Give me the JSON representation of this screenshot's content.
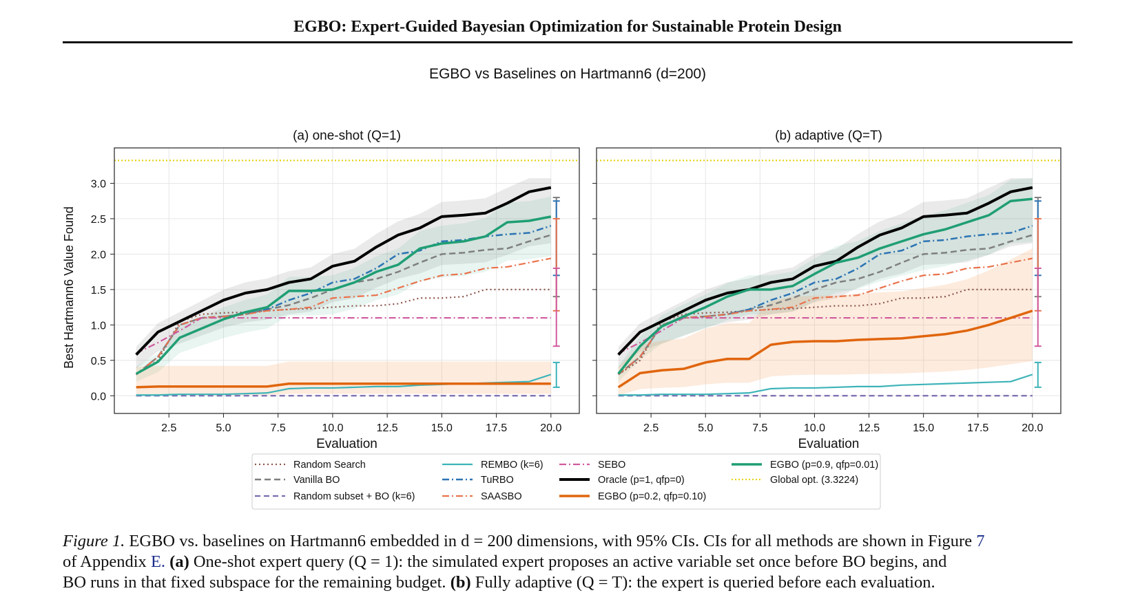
{
  "header": {
    "running_title": "EGBO: Expert-Guided Bayesian Optimization for Sustainable Protein Design"
  },
  "figure": {
    "suptitle": "EGBO vs Baselines on Hartmann6 (d=200)",
    "global_opt_label": "Global opt. (3.3224)",
    "legend": [
      {
        "key": "random",
        "label": "Random Search",
        "color": "#8c564b",
        "dash": "2,4",
        "width": 2.2
      },
      {
        "key": "vanilla",
        "label": "Vanilla BO",
        "color": "#7f7f7f",
        "dash": "9,5",
        "width": 2.5
      },
      {
        "key": "subset",
        "label": "Random subset + BO (k=6)",
        "color": "#7b6bb0",
        "dash": "8,5",
        "width": 2.2
      },
      {
        "key": "rembo",
        "label": "REMBO (k=6)",
        "color": "#3cb3b8",
        "dash": "",
        "width": 2.2
      },
      {
        "key": "turbo",
        "label": "TuRBO",
        "color": "#2c74b3",
        "dash": "10,4,2,4",
        "width": 2.5
      },
      {
        "key": "saasbo",
        "label": "SAASBO",
        "color": "#e9724c",
        "dash": "10,4,2,4",
        "width": 2.2
      },
      {
        "key": "sebo",
        "label": "SEBO",
        "color": "#d05a9e",
        "dash": "10,4,2,4",
        "width": 2.2
      },
      {
        "key": "oracle",
        "label": "Oracle (p=1, qfp=0)",
        "color": "#000000",
        "dash": "",
        "width": 4
      },
      {
        "key": "egbo_low",
        "label": "EGBO (p=0.2, qfp=0.10)",
        "color": "#e0650d",
        "dash": "",
        "width": 3.5
      },
      {
        "key": "egbo_high",
        "label": "EGBO (p=0.9, qfp=0.01)",
        "color": "#1f9e74",
        "dash": "",
        "width": 3.5
      },
      {
        "key": "global",
        "label": "Global opt. (3.3224)",
        "color": "#e6d31a",
        "dash": "2,3",
        "width": 2.2
      }
    ]
  },
  "chart_data": [
    {
      "type": "line",
      "title": "(a) one-shot (Q=1)",
      "xlabel": "Evaluation",
      "ylabel": "Best Hartmann6 Value Found",
      "xlim": [
        0,
        21.3
      ],
      "ylim": [
        -0.25,
        3.5
      ],
      "xticks": [
        "2.5",
        "5.0",
        "7.5",
        "10.0",
        "12.5",
        "15.0",
        "17.5",
        "20.0"
      ],
      "yticks": [
        "0.0",
        "0.5",
        "1.0",
        "1.5",
        "2.0",
        "2.5",
        "3.0"
      ],
      "grid": true,
      "global_opt": 3.3224,
      "x": [
        1,
        2,
        3,
        4,
        5,
        6,
        7,
        8,
        9,
        10,
        11,
        12,
        13,
        14,
        15,
        16,
        17,
        18,
        19,
        20
      ],
      "series": [
        {
          "key": "random",
          "values": [
            0.3,
            0.5,
            1.05,
            1.15,
            1.17,
            1.18,
            1.2,
            1.22,
            1.23,
            1.25,
            1.27,
            1.27,
            1.3,
            1.38,
            1.38,
            1.4,
            1.5,
            1.5,
            1.5,
            1.5
          ]
        },
        {
          "key": "vanilla",
          "values": [
            0.3,
            0.55,
            1.0,
            1.1,
            1.12,
            1.15,
            1.22,
            1.28,
            1.38,
            1.5,
            1.6,
            1.65,
            1.75,
            1.88,
            2.0,
            2.02,
            2.06,
            2.08,
            2.18,
            2.27
          ]
        },
        {
          "key": "subset",
          "values": [
            0,
            0,
            0,
            0,
            0,
            0,
            0,
            0,
            0,
            0,
            0,
            0,
            0,
            0,
            0,
            0,
            0,
            0,
            0,
            0
          ]
        },
        {
          "key": "rembo",
          "values": [
            0.01,
            0.01,
            0.02,
            0.02,
            0.02,
            0.03,
            0.04,
            0.1,
            0.11,
            0.11,
            0.12,
            0.13,
            0.13,
            0.15,
            0.16,
            0.17,
            0.18,
            0.19,
            0.2,
            0.3
          ]
        },
        {
          "key": "turbo",
          "values": [
            0.3,
            0.55,
            1.0,
            1.1,
            1.12,
            1.15,
            1.22,
            1.35,
            1.45,
            1.6,
            1.65,
            1.8,
            2.0,
            2.05,
            2.18,
            2.2,
            2.25,
            2.28,
            2.3,
            2.4
          ]
        },
        {
          "key": "saasbo",
          "values": [
            0.3,
            0.55,
            1.0,
            1.1,
            1.12,
            1.15,
            1.2,
            1.22,
            1.25,
            1.38,
            1.4,
            1.42,
            1.52,
            1.62,
            1.7,
            1.72,
            1.8,
            1.82,
            1.88,
            1.94
          ]
        },
        {
          "key": "sebo",
          "values": [
            0.6,
            0.75,
            0.92,
            1.1,
            1.1,
            1.1,
            1.1,
            1.1,
            1.1,
            1.1,
            1.1,
            1.1,
            1.1,
            1.1,
            1.1,
            1.1,
            1.1,
            1.1,
            1.1,
            1.1
          ]
        },
        {
          "key": "oracle",
          "values": [
            0.58,
            0.9,
            1.05,
            1.2,
            1.35,
            1.45,
            1.5,
            1.6,
            1.65,
            1.83,
            1.9,
            2.1,
            2.27,
            2.37,
            2.53,
            2.55,
            2.58,
            2.72,
            2.88,
            2.94
          ]
        },
        {
          "key": "egbo_low",
          "values": [
            0.12,
            0.13,
            0.13,
            0.13,
            0.13,
            0.13,
            0.13,
            0.17,
            0.17,
            0.17,
            0.17,
            0.17,
            0.17,
            0.17,
            0.17,
            0.17,
            0.17,
            0.17,
            0.17,
            0.17
          ]
        },
        {
          "key": "egbo_high",
          "values": [
            0.31,
            0.48,
            0.82,
            0.95,
            1.08,
            1.18,
            1.25,
            1.48,
            1.48,
            1.5,
            1.6,
            1.75,
            1.85,
            2.08,
            2.15,
            2.18,
            2.25,
            2.45,
            2.47,
            2.53
          ]
        }
      ],
      "ci_bars": [
        {
          "key": "vanilla",
          "low": 1.4,
          "high": 2.8
        },
        {
          "key": "turbo",
          "low": 1.7,
          "high": 2.75
        },
        {
          "key": "saasbo",
          "low": 1.2,
          "high": 2.5
        },
        {
          "key": "sebo",
          "low": 0.7,
          "high": 1.8
        },
        {
          "key": "rembo",
          "low": 0.12,
          "high": 0.47
        }
      ]
    },
    {
      "type": "line",
      "title": "(b) adaptive (Q=T)",
      "xlabel": "Evaluation",
      "ylabel": "",
      "xlim": [
        0,
        21.3
      ],
      "ylim": [
        -0.25,
        3.5
      ],
      "xticks": [
        "2.5",
        "5.0",
        "7.5",
        "10.0",
        "12.5",
        "15.0",
        "17.5",
        "20.0"
      ],
      "yticks": [
        "0.0",
        "0.5",
        "1.0",
        "1.5",
        "2.0",
        "2.5",
        "3.0"
      ],
      "grid": true,
      "global_opt": 3.3224,
      "x": [
        1,
        2,
        3,
        4,
        5,
        6,
        7,
        8,
        9,
        10,
        11,
        12,
        13,
        14,
        15,
        16,
        17,
        18,
        19,
        20
      ],
      "series": [
        {
          "key": "random",
          "values": [
            0.3,
            0.5,
            1.05,
            1.15,
            1.17,
            1.18,
            1.2,
            1.22,
            1.23,
            1.25,
            1.27,
            1.27,
            1.3,
            1.38,
            1.38,
            1.4,
            1.5,
            1.5,
            1.5,
            1.5
          ]
        },
        {
          "key": "vanilla",
          "values": [
            0.3,
            0.55,
            1.0,
            1.1,
            1.12,
            1.15,
            1.22,
            1.28,
            1.38,
            1.5,
            1.6,
            1.65,
            1.75,
            1.88,
            2.0,
            2.02,
            2.06,
            2.08,
            2.18,
            2.27
          ]
        },
        {
          "key": "subset",
          "values": [
            0,
            0,
            0,
            0,
            0,
            0,
            0,
            0,
            0,
            0,
            0,
            0,
            0,
            0,
            0,
            0,
            0,
            0,
            0,
            0
          ]
        },
        {
          "key": "rembo",
          "values": [
            0.01,
            0.01,
            0.02,
            0.02,
            0.02,
            0.03,
            0.04,
            0.1,
            0.11,
            0.11,
            0.12,
            0.13,
            0.13,
            0.15,
            0.16,
            0.17,
            0.18,
            0.19,
            0.2,
            0.3
          ]
        },
        {
          "key": "turbo",
          "values": [
            0.3,
            0.55,
            1.0,
            1.1,
            1.12,
            1.15,
            1.22,
            1.35,
            1.45,
            1.6,
            1.65,
            1.8,
            2.0,
            2.05,
            2.18,
            2.2,
            2.25,
            2.28,
            2.3,
            2.4
          ]
        },
        {
          "key": "saasbo",
          "values": [
            0.3,
            0.55,
            1.0,
            1.1,
            1.12,
            1.15,
            1.2,
            1.22,
            1.25,
            1.38,
            1.4,
            1.42,
            1.52,
            1.62,
            1.7,
            1.72,
            1.8,
            1.82,
            1.88,
            1.94
          ]
        },
        {
          "key": "sebo",
          "values": [
            0.6,
            0.75,
            0.92,
            1.1,
            1.1,
            1.1,
            1.1,
            1.1,
            1.1,
            1.1,
            1.1,
            1.1,
            1.1,
            1.1,
            1.1,
            1.1,
            1.1,
            1.1,
            1.1,
            1.1
          ]
        },
        {
          "key": "oracle",
          "values": [
            0.58,
            0.9,
            1.05,
            1.2,
            1.35,
            1.45,
            1.5,
            1.6,
            1.65,
            1.83,
            1.9,
            2.1,
            2.27,
            2.37,
            2.53,
            2.55,
            2.58,
            2.72,
            2.88,
            2.94
          ]
        },
        {
          "key": "egbo_low",
          "values": [
            0.12,
            0.32,
            0.36,
            0.38,
            0.47,
            0.52,
            0.52,
            0.72,
            0.76,
            0.77,
            0.77,
            0.79,
            0.8,
            0.81,
            0.84,
            0.87,
            0.92,
            1.0,
            1.1,
            1.2
          ]
        },
        {
          "key": "egbo_high",
          "values": [
            0.31,
            0.7,
            0.98,
            1.12,
            1.25,
            1.4,
            1.5,
            1.5,
            1.55,
            1.72,
            1.88,
            1.95,
            2.08,
            2.18,
            2.28,
            2.35,
            2.45,
            2.55,
            2.75,
            2.78
          ]
        }
      ],
      "ci_bars": [
        {
          "key": "vanilla",
          "low": 1.4,
          "high": 2.8
        },
        {
          "key": "turbo",
          "low": 1.7,
          "high": 2.75
        },
        {
          "key": "saasbo",
          "low": 1.2,
          "high": 2.5
        },
        {
          "key": "sebo",
          "low": 0.7,
          "high": 1.8
        },
        {
          "key": "rembo",
          "low": 0.12,
          "high": 0.47
        }
      ]
    }
  ],
  "caption": {
    "fig_label": "Figure 1.",
    "line1_text": "EGBO vs. baselines on Hartmann6 embedded in d = 200 dimensions, with 95% CIs. CIs for all methods are shown in Figure",
    "fig_ref": "7",
    "line2_a": "of Appendix",
    "appendix_ref": "E.",
    "part_a_label": "(a)",
    "line2_b": "One-shot expert query (Q = 1): the simulated expert proposes an active variable set once before BO begins, and",
    "line3_a": "BO runs in that fixed subspace for the remaining budget.",
    "part_b_label": "(b)",
    "line3_b": "Fully adaptive (Q = T): the expert is queried before each evaluation."
  }
}
